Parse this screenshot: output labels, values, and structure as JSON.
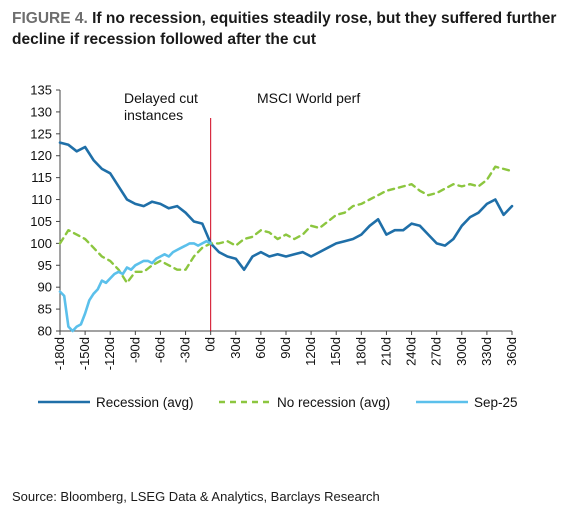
{
  "title": {
    "label": "FIGURE 4.",
    "text": "If no recession, equities steadily rose, but they suffered further decline if recession followed after the cut"
  },
  "source": "Source: Bloomberg, LSEG Data & Analytics, Barclays Research",
  "chart_data": {
    "type": "line",
    "annotations": [
      "Delayed cut instances",
      "MSCI World perf"
    ],
    "xlim": [
      -180,
      360
    ],
    "ylim": [
      80,
      135
    ],
    "x_tick_labels": [
      "-180d",
      "-150d",
      "-120d",
      "-90d",
      "-60d",
      "-30d",
      "0d",
      "30d",
      "60d",
      "90d",
      "120d",
      "150d",
      "180d",
      "210d",
      "240d",
      "270d",
      "300d",
      "330d",
      "360d"
    ],
    "y_tick_labels": [
      "80",
      "85",
      "90",
      "95",
      "100",
      "105",
      "110",
      "115",
      "120",
      "125",
      "130",
      "135"
    ],
    "grid": false,
    "legend_position": "bottom",
    "vertical_marker_x": 0,
    "colors": {
      "recession": "#1f6fa8",
      "no_recession": "#8cc63f",
      "sep25": "#5bc0eb",
      "marker": "#d0021b"
    },
    "series": [
      {
        "name": "Recession (avg)",
        "style": "solid",
        "x": [
          -180,
          -170,
          -160,
          -150,
          -140,
          -130,
          -120,
          -110,
          -100,
          -90,
          -80,
          -70,
          -60,
          -50,
          -40,
          -30,
          -20,
          -10,
          0,
          10,
          20,
          30,
          40,
          50,
          60,
          70,
          80,
          90,
          100,
          110,
          120,
          130,
          140,
          150,
          160,
          170,
          180,
          190,
          200,
          210,
          220,
          230,
          240,
          250,
          260,
          270,
          280,
          290,
          300,
          310,
          320,
          330,
          340,
          350,
          360
        ],
        "y": [
          123,
          122.5,
          121,
          122,
          119,
          117,
          116,
          113,
          110,
          109,
          108.5,
          109.5,
          109,
          108,
          108.5,
          107,
          105,
          104.5,
          100,
          98,
          97,
          96.5,
          94,
          97,
          98,
          97,
          97.5,
          97,
          97.5,
          98,
          97,
          98,
          99,
          100,
          100.5,
          101,
          102,
          104,
          105.5,
          102,
          103,
          103,
          104.5,
          104,
          102,
          100,
          99.5,
          101,
          104,
          106,
          107,
          109,
          110,
          106.5,
          108.5
        ]
      },
      {
        "name": "No recession (avg)",
        "style": "dashed",
        "x": [
          -180,
          -170,
          -160,
          -150,
          -140,
          -130,
          -120,
          -110,
          -100,
          -90,
          -80,
          -70,
          -60,
          -50,
          -40,
          -30,
          -20,
          -10,
          0,
          10,
          20,
          30,
          40,
          50,
          60,
          70,
          80,
          90,
          100,
          110,
          120,
          130,
          140,
          150,
          160,
          170,
          180,
          190,
          200,
          210,
          220,
          230,
          240,
          250,
          260,
          270,
          280,
          290,
          300,
          310,
          320,
          330,
          340,
          350,
          360
        ],
        "y": [
          100,
          103,
          102,
          101,
          99,
          97,
          96,
          94,
          91,
          93.5,
          93.5,
          95,
          96,
          95,
          94,
          94,
          97,
          99,
          100,
          100,
          100.5,
          99.5,
          101,
          101.5,
          103,
          102.5,
          101,
          102,
          101,
          102,
          104,
          103.5,
          105,
          106.5,
          107,
          108.5,
          109,
          110,
          111,
          112,
          112.5,
          113,
          113.5,
          112,
          111,
          111.5,
          112.5,
          113.5,
          113,
          113.5,
          113,
          114.5,
          117.5,
          117,
          116.5
        ]
      },
      {
        "name": "Sep-25",
        "style": "solid",
        "x": [
          -180,
          -175,
          -170,
          -165,
          -160,
          -155,
          -150,
          -145,
          -140,
          -135,
          -130,
          -125,
          -120,
          -115,
          -110,
          -105,
          -100,
          -95,
          -90,
          -85,
          -80,
          -75,
          -70,
          -65,
          -60,
          -55,
          -50,
          -45,
          -40,
          -35,
          -30,
          -25,
          -20,
          -15,
          -10,
          -5,
          0
        ],
        "y": [
          89,
          88,
          81,
          80,
          81,
          81.5,
          84,
          87,
          88.5,
          89.5,
          91.5,
          91,
          92,
          93,
          93.5,
          93,
          94.5,
          94,
          95,
          95.5,
          96,
          96,
          95.5,
          96.5,
          97,
          97.5,
          97,
          98,
          98.5,
          99,
          99.5,
          100,
          100,
          99.5,
          100,
          100.5,
          100
        ]
      }
    ]
  }
}
